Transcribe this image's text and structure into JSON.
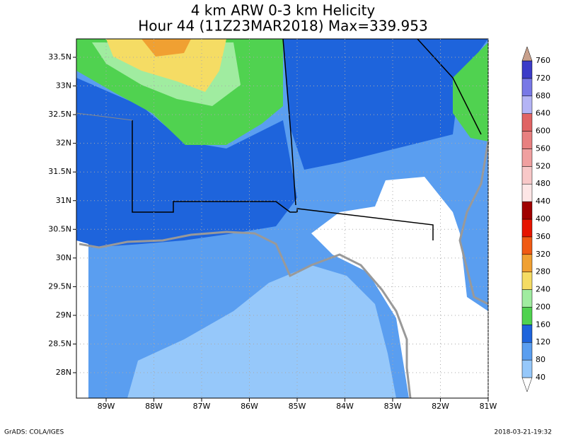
{
  "header": {
    "title": "4 km ARW 0-3 km Helicity",
    "subtitle": "Hour 44 (11Z23MAR2018) Max=339.953"
  },
  "map": {
    "longitude_labels": [
      "89W",
      "88W",
      "87W",
      "86W",
      "85W",
      "84W",
      "83W",
      "82W",
      "81W"
    ],
    "latitude_labels": [
      "33.5N",
      "33N",
      "32.5N",
      "32N",
      "31.5N",
      "31N",
      "30.5N",
      "30N",
      "29.5N",
      "29N",
      "28.5N",
      "28N"
    ]
  },
  "colorbar": {
    "levels": [
      40,
      80,
      120,
      160,
      200,
      240,
      280,
      320,
      360,
      400,
      440,
      480,
      520,
      560,
      600,
      640,
      680,
      720,
      760
    ],
    "colors": [
      "#ffffff",
      "#96c8fa",
      "#5a9ef0",
      "#1e64dc",
      "#50d250",
      "#a0eca0",
      "#f5dc64",
      "#f0a032",
      "#f05a14",
      "#e61400",
      "#a00000",
      "#fde6e6",
      "#f8c8c8",
      "#f0a0a0",
      "#e88080",
      "#e06464",
      "#b4b4f5",
      "#7878e6",
      "#3c3cc8",
      "#c8a08c"
    ]
  },
  "footer": {
    "left": "GrADS: COLA/IGES",
    "right": "2018-03-21-19:32"
  }
}
